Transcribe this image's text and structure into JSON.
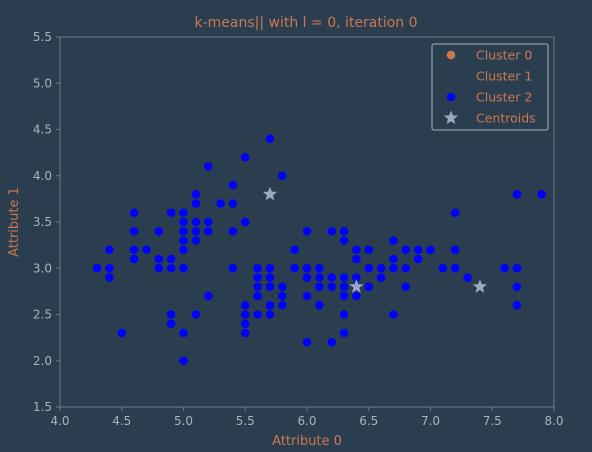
{
  "colors": {
    "background": "#2b3e50",
    "axes_face": "#2b3e50",
    "spine": "#6c7a88",
    "tick_text": "#aab2ba",
    "title_text": "#c9784f",
    "label_text": "#c9784f",
    "legend_text": "#c9784f",
    "legend_border": "#aab2ba",
    "cluster0": "#c9784f",
    "cluster1": "#2b3e50",
    "cluster2": "#0000ff",
    "centroid": "#9aa9bd"
  },
  "chart_data": {
    "type": "scatter",
    "title": "k-means|| with l = 0, iteration 0",
    "xlabel": "Attribute 0",
    "ylabel": "Attribute 1",
    "xlim": [
      4.0,
      8.0
    ],
    "ylim": [
      1.5,
      5.5
    ],
    "xticks": [
      "4.0",
      "4.5",
      "5.0",
      "5.5",
      "6.0",
      "6.5",
      "7.0",
      "7.5",
      "8.0"
    ],
    "yticks": [
      "1.5",
      "2.0",
      "2.5",
      "3.0",
      "3.5",
      "4.0",
      "4.5",
      "5.0",
      "5.5"
    ],
    "grid": false,
    "legend_position": "top-right",
    "legend": [
      "Cluster 0",
      "Cluster 1",
      "Cluster 2",
      "Centroids"
    ],
    "series": [
      {
        "name": "Cluster 0",
        "marker": "circle",
        "points": []
      },
      {
        "name": "Cluster 1",
        "marker": "circle",
        "points": []
      },
      {
        "name": "Cluster 2",
        "marker": "circle",
        "points": [
          [
            4.3,
            3.0
          ],
          [
            4.4,
            2.9
          ],
          [
            4.4,
            3.0
          ],
          [
            4.4,
            3.2
          ],
          [
            4.5,
            2.3
          ],
          [
            4.6,
            3.1
          ],
          [
            4.6,
            3.2
          ],
          [
            4.6,
            3.4
          ],
          [
            4.6,
            3.6
          ],
          [
            4.7,
            3.2
          ],
          [
            4.8,
            3.0
          ],
          [
            4.8,
            3.1
          ],
          [
            4.8,
            3.4
          ],
          [
            4.9,
            2.4
          ],
          [
            4.9,
            2.5
          ],
          [
            4.9,
            3.0
          ],
          [
            4.9,
            3.1
          ],
          [
            4.9,
            3.6
          ],
          [
            5.0,
            2.0
          ],
          [
            5.0,
            2.3
          ],
          [
            5.0,
            3.0
          ],
          [
            5.0,
            3.2
          ],
          [
            5.0,
            3.3
          ],
          [
            5.0,
            3.4
          ],
          [
            5.0,
            3.5
          ],
          [
            5.0,
            3.6
          ],
          [
            5.1,
            2.5
          ],
          [
            5.1,
            3.3
          ],
          [
            5.1,
            3.4
          ],
          [
            5.1,
            3.5
          ],
          [
            5.1,
            3.7
          ],
          [
            5.1,
            3.8
          ],
          [
            5.2,
            2.7
          ],
          [
            5.2,
            3.4
          ],
          [
            5.2,
            3.5
          ],
          [
            5.2,
            4.1
          ],
          [
            5.3,
            3.7
          ],
          [
            5.4,
            3.0
          ],
          [
            5.4,
            3.4
          ],
          [
            5.4,
            3.7
          ],
          [
            5.4,
            3.9
          ],
          [
            5.5,
            2.3
          ],
          [
            5.5,
            2.4
          ],
          [
            5.5,
            2.5
          ],
          [
            5.5,
            2.6
          ],
          [
            5.5,
            3.5
          ],
          [
            5.5,
            4.2
          ],
          [
            5.6,
            2.5
          ],
          [
            5.6,
            2.7
          ],
          [
            5.6,
            2.8
          ],
          [
            5.6,
            2.9
          ],
          [
            5.6,
            3.0
          ],
          [
            5.7,
            2.5
          ],
          [
            5.7,
            2.6
          ],
          [
            5.7,
            2.8
          ],
          [
            5.7,
            2.9
          ],
          [
            5.7,
            3.0
          ],
          [
            5.7,
            4.4
          ],
          [
            5.8,
            2.6
          ],
          [
            5.8,
            2.7
          ],
          [
            5.8,
            2.8
          ],
          [
            5.8,
            4.0
          ],
          [
            5.9,
            3.0
          ],
          [
            5.9,
            3.2
          ],
          [
            6.0,
            2.2
          ],
          [
            6.0,
            2.7
          ],
          [
            6.0,
            2.9
          ],
          [
            6.0,
            3.0
          ],
          [
            6.0,
            3.4
          ],
          [
            6.1,
            2.6
          ],
          [
            6.1,
            2.8
          ],
          [
            6.1,
            2.9
          ],
          [
            6.1,
            3.0
          ],
          [
            6.2,
            2.2
          ],
          [
            6.2,
            2.8
          ],
          [
            6.2,
            2.9
          ],
          [
            6.2,
            3.4
          ],
          [
            6.3,
            2.3
          ],
          [
            6.3,
            2.5
          ],
          [
            6.3,
            2.7
          ],
          [
            6.3,
            2.8
          ],
          [
            6.3,
            2.9
          ],
          [
            6.3,
            3.3
          ],
          [
            6.3,
            3.4
          ],
          [
            6.4,
            2.7
          ],
          [
            6.4,
            2.8
          ],
          [
            6.4,
            2.9
          ],
          [
            6.4,
            3.1
          ],
          [
            6.4,
            3.2
          ],
          [
            6.5,
            2.8
          ],
          [
            6.5,
            3.0
          ],
          [
            6.5,
            3.2
          ],
          [
            6.6,
            2.9
          ],
          [
            6.6,
            3.0
          ],
          [
            6.7,
            2.5
          ],
          [
            6.7,
            3.0
          ],
          [
            6.7,
            3.1
          ],
          [
            6.7,
            3.3
          ],
          [
            6.8,
            2.8
          ],
          [
            6.8,
            3.0
          ],
          [
            6.8,
            3.2
          ],
          [
            6.9,
            3.1
          ],
          [
            6.9,
            3.2
          ],
          [
            7.0,
            3.2
          ],
          [
            7.1,
            3.0
          ],
          [
            7.2,
            3.0
          ],
          [
            7.2,
            3.2
          ],
          [
            7.2,
            3.6
          ],
          [
            7.3,
            2.9
          ],
          [
            7.6,
            3.0
          ],
          [
            7.7,
            2.6
          ],
          [
            7.7,
            2.8
          ],
          [
            7.7,
            3.0
          ],
          [
            7.7,
            3.8
          ],
          [
            7.9,
            3.8
          ]
        ]
      },
      {
        "name": "Centroids",
        "marker": "star",
        "points": [
          [
            5.7,
            3.8
          ],
          [
            6.4,
            2.8
          ],
          [
            7.4,
            2.8
          ]
        ]
      }
    ]
  }
}
